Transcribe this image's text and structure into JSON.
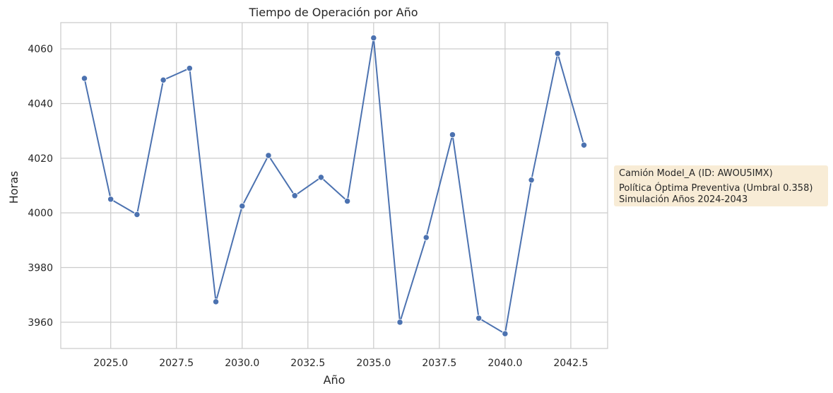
{
  "chart_data": {
    "type": "line",
    "title": "Tiempo de Operación por Año",
    "xlabel": "Año",
    "ylabel": "Horas",
    "xlim": [
      2023.1,
      2043.9
    ],
    "ylim": [
      3950.4,
      4069.6
    ],
    "xticks": [
      2025.0,
      2027.5,
      2030.0,
      2032.5,
      2035.0,
      2037.5,
      2040.0,
      2042.5
    ],
    "xtick_labels": [
      "2025.0",
      "2027.5",
      "2030.0",
      "2032.5",
      "2035.0",
      "2037.5",
      "2040.0",
      "2042.5"
    ],
    "yticks": [
      3960,
      3980,
      4000,
      4020,
      4040,
      4060
    ],
    "ytick_labels": [
      "3960",
      "3980",
      "4000",
      "4020",
      "4040",
      "4060"
    ],
    "grid": true,
    "legend": "none",
    "series": [
      {
        "color": "#4c72b0",
        "marker": "circle",
        "x": [
          2024,
          2025,
          2026,
          2027,
          2028,
          2029,
          2030,
          2031,
          2032,
          2033,
          2034,
          2035,
          2036,
          2037,
          2038,
          2039,
          2040,
          2041,
          2042,
          2043
        ],
        "values": [
          4049.2,
          4005.0,
          3999.4,
          4048.6,
          4052.9,
          3967.5,
          4002.5,
          4021.0,
          4006.3,
          4013.0,
          4004.3,
          4064.0,
          3960.0,
          3991.0,
          4028.6,
          3961.5,
          3955.8,
          4012.0,
          4058.3,
          4024.8
        ]
      }
    ],
    "annotation": {
      "lines": [
        "Camión Model_A (ID: AWOU5IMX)",
        "Política Óptima Preventiva (Umbral 0.358)",
        "Simulación Años 2024-2043"
      ],
      "background": "#f8ecd6"
    },
    "colors": {
      "background": "#ffffff",
      "grid": "#cccccc",
      "frame": "#cccccc",
      "text": "#262626"
    }
  }
}
